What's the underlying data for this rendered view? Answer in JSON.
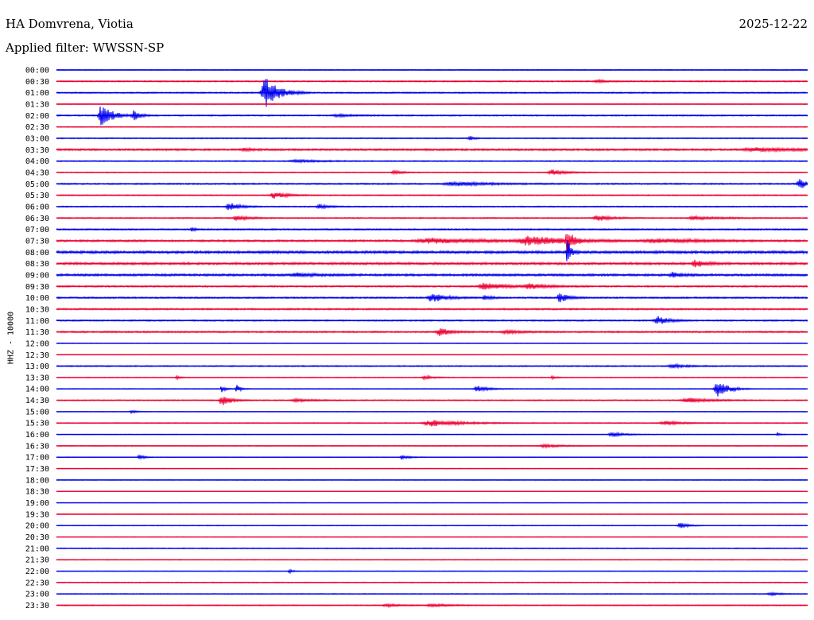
{
  "header": {
    "station": "HA Domvrena, Viotia",
    "date": "2025-12-22",
    "filter": "Applied filter: WWSSN-SP"
  },
  "axis": {
    "channel_label": "HHZ - 10000"
  },
  "colors": {
    "even_row": "#0000ee",
    "odd_row": "#ee0033",
    "background": "#ffffff",
    "text": "#000000"
  },
  "chart_data": {
    "type": "line",
    "title": "HA Domvrena, Viotia",
    "subtitle": "Applied filter: WWSSN-SP",
    "ylabel": "HHZ - 10000",
    "xlabel": "",
    "row_minutes": 30,
    "row_colors": [
      "#0000ee",
      "#ee0033"
    ],
    "rows": [
      {
        "time": "00:00",
        "noise": 0.6,
        "events": []
      },
      {
        "time": "00:30",
        "noise": 0.8,
        "events": [
          {
            "x": 0.72,
            "amp": 2,
            "width": 0.01
          }
        ]
      },
      {
        "time": "01:00",
        "noise": 0.8,
        "events": [
          {
            "x": 0.278,
            "amp": 20,
            "width": 0.015
          }
        ]
      },
      {
        "time": "01:30",
        "noise": 0.5,
        "events": []
      },
      {
        "time": "02:00",
        "noise": 0.8,
        "events": [
          {
            "x": 0.06,
            "amp": 15,
            "width": 0.012
          },
          {
            "x": 0.103,
            "amp": 6,
            "width": 0.008
          },
          {
            "x": 0.375,
            "amp": 1.5,
            "width": 0.02
          }
        ]
      },
      {
        "time": "02:30",
        "noise": 0.5,
        "events": []
      },
      {
        "time": "03:00",
        "noise": 0.7,
        "events": [
          {
            "x": 0.55,
            "amp": 3,
            "width": 0.005
          }
        ]
      },
      {
        "time": "03:30",
        "noise": 1.2,
        "events": [
          {
            "x": 0.25,
            "amp": 2,
            "width": 0.01
          },
          {
            "x": 0.93,
            "amp": 2,
            "width": 0.05
          }
        ]
      },
      {
        "time": "04:00",
        "noise": 0.7,
        "events": [
          {
            "x": 0.32,
            "amp": 1.5,
            "width": 0.03
          }
        ]
      },
      {
        "time": "04:30",
        "noise": 0.6,
        "events": [
          {
            "x": 0.45,
            "amp": 2.5,
            "width": 0.01
          },
          {
            "x": 0.66,
            "amp": 3.5,
            "width": 0.015
          }
        ]
      },
      {
        "time": "05:00",
        "noise": 0.9,
        "events": [
          {
            "x": 0.53,
            "amp": 2.5,
            "width": 0.04
          },
          {
            "x": 0.99,
            "amp": 6,
            "width": 0.012
          }
        ]
      },
      {
        "time": "05:30",
        "noise": 0.7,
        "events": [
          {
            "x": 0.29,
            "amp": 4,
            "width": 0.015
          }
        ]
      },
      {
        "time": "06:00",
        "noise": 0.7,
        "events": [
          {
            "x": 0.23,
            "amp": 5,
            "width": 0.012
          },
          {
            "x": 0.35,
            "amp": 3,
            "width": 0.01
          }
        ]
      },
      {
        "time": "06:30",
        "noise": 0.8,
        "events": [
          {
            "x": 0.24,
            "amp": 3,
            "width": 0.015
          },
          {
            "x": 0.72,
            "amp": 4,
            "width": 0.015
          },
          {
            "x": 0.85,
            "amp": 2,
            "width": 0.03
          }
        ]
      },
      {
        "time": "07:00",
        "noise": 0.9,
        "events": [
          {
            "x": 0.18,
            "amp": 2,
            "width": 0.005
          }
        ]
      },
      {
        "time": "07:30",
        "noise": 1.2,
        "events": [
          {
            "x": 0.5,
            "amp": 3,
            "width": 0.06
          },
          {
            "x": 0.63,
            "amp": 6,
            "width": 0.04
          },
          {
            "x": 0.68,
            "amp": 16,
            "width": 0.006
          },
          {
            "x": 0.8,
            "amp": 2.5,
            "width": 0.05
          }
        ]
      },
      {
        "time": "08:00",
        "noise": 1.6,
        "events": [
          {
            "x": 0.68,
            "amp": 18,
            "width": 0.004
          }
        ]
      },
      {
        "time": "08:30",
        "noise": 1.4,
        "events": [
          {
            "x": 0.85,
            "amp": 5,
            "width": 0.012
          }
        ]
      },
      {
        "time": "09:00",
        "noise": 1.4,
        "events": [
          {
            "x": 0.32,
            "amp": 2,
            "width": 0.02
          },
          {
            "x": 0.82,
            "amp": 3,
            "width": 0.01
          }
        ]
      },
      {
        "time": "09:30",
        "noise": 1.0,
        "events": [
          {
            "x": 0.57,
            "amp": 4,
            "width": 0.025
          },
          {
            "x": 0.63,
            "amp": 3,
            "width": 0.02
          }
        ]
      },
      {
        "time": "10:00",
        "noise": 1.0,
        "events": [
          {
            "x": 0.5,
            "amp": 6,
            "width": 0.015
          },
          {
            "x": 0.57,
            "amp": 3,
            "width": 0.008
          },
          {
            "x": 0.67,
            "amp": 6,
            "width": 0.01
          }
        ]
      },
      {
        "time": "10:30",
        "noise": 1.0,
        "events": []
      },
      {
        "time": "11:00",
        "noise": 0.9,
        "events": [
          {
            "x": 0.8,
            "amp": 6,
            "width": 0.012
          }
        ]
      },
      {
        "time": "11:30",
        "noise": 1.0,
        "events": [
          {
            "x": 0.51,
            "amp": 5,
            "width": 0.012
          },
          {
            "x": 0.6,
            "amp": 2,
            "width": 0.02
          }
        ]
      },
      {
        "time": "12:00",
        "noise": 0.4,
        "events": []
      },
      {
        "time": "12:30",
        "noise": 0.4,
        "events": []
      },
      {
        "time": "13:00",
        "noise": 0.8,
        "events": [
          {
            "x": 0.82,
            "amp": 2.5,
            "width": 0.015
          }
        ]
      },
      {
        "time": "13:30",
        "noise": 0.5,
        "events": [
          {
            "x": 0.16,
            "amp": 2,
            "width": 0.005
          },
          {
            "x": 0.49,
            "amp": 2.5,
            "width": 0.01
          },
          {
            "x": 0.66,
            "amp": 2,
            "width": 0.005
          }
        ]
      },
      {
        "time": "14:00",
        "noise": 0.5,
        "events": [
          {
            "x": 0.22,
            "amp": 5,
            "width": 0.004
          },
          {
            "x": 0.24,
            "amp": 5,
            "width": 0.005
          },
          {
            "x": 0.56,
            "amp": 4,
            "width": 0.012
          },
          {
            "x": 0.88,
            "amp": 11,
            "width": 0.012
          }
        ]
      },
      {
        "time": "14:30",
        "noise": 0.7,
        "events": [
          {
            "x": 0.22,
            "amp": 7,
            "width": 0.01
          },
          {
            "x": 0.32,
            "amp": 2,
            "width": 0.02
          },
          {
            "x": 0.84,
            "amp": 3,
            "width": 0.025
          }
        ]
      },
      {
        "time": "15:00",
        "noise": 0.4,
        "events": [
          {
            "x": 0.1,
            "amp": 2,
            "width": 0.006
          }
        ]
      },
      {
        "time": "15:30",
        "noise": 0.6,
        "events": [
          {
            "x": 0.5,
            "amp": 4,
            "width": 0.035
          },
          {
            "x": 0.81,
            "amp": 2.5,
            "width": 0.02
          }
        ]
      },
      {
        "time": "16:00",
        "noise": 0.4,
        "events": [
          {
            "x": 0.74,
            "amp": 3,
            "width": 0.015
          },
          {
            "x": 0.96,
            "amp": 2,
            "width": 0.004
          }
        ]
      },
      {
        "time": "16:30",
        "noise": 0.6,
        "events": [
          {
            "x": 0.65,
            "amp": 2,
            "width": 0.02
          }
        ]
      },
      {
        "time": "17:00",
        "noise": 0.4,
        "events": [
          {
            "x": 0.11,
            "amp": 4,
            "width": 0.005
          },
          {
            "x": 0.46,
            "amp": 3,
            "width": 0.008
          }
        ]
      },
      {
        "time": "17:30",
        "noise": 0.4,
        "events": []
      },
      {
        "time": "18:00",
        "noise": 0.5,
        "events": []
      },
      {
        "time": "18:30",
        "noise": 0.4,
        "events": []
      },
      {
        "time": "19:00",
        "noise": 0.3,
        "events": []
      },
      {
        "time": "19:30",
        "noise": 0.5,
        "events": []
      },
      {
        "time": "20:00",
        "noise": 0.5,
        "events": [
          {
            "x": 0.83,
            "amp": 4,
            "width": 0.008
          }
        ]
      },
      {
        "time": "20:30",
        "noise": 0.4,
        "events": []
      },
      {
        "time": "21:00",
        "noise": 0.6,
        "events": []
      },
      {
        "time": "21:30",
        "noise": 0.5,
        "events": []
      },
      {
        "time": "22:00",
        "noise": 0.4,
        "events": [
          {
            "x": 0.31,
            "amp": 3,
            "width": 0.004
          }
        ]
      },
      {
        "time": "22:30",
        "noise": 0.6,
        "events": []
      },
      {
        "time": "23:00",
        "noise": 0.6,
        "events": [
          {
            "x": 0.95,
            "amp": 2,
            "width": 0.01
          }
        ]
      },
      {
        "time": "23:30",
        "noise": 0.6,
        "events": [
          {
            "x": 0.44,
            "amp": 2,
            "width": 0.015
          },
          {
            "x": 0.5,
            "amp": 2,
            "width": 0.02
          }
        ]
      }
    ]
  }
}
